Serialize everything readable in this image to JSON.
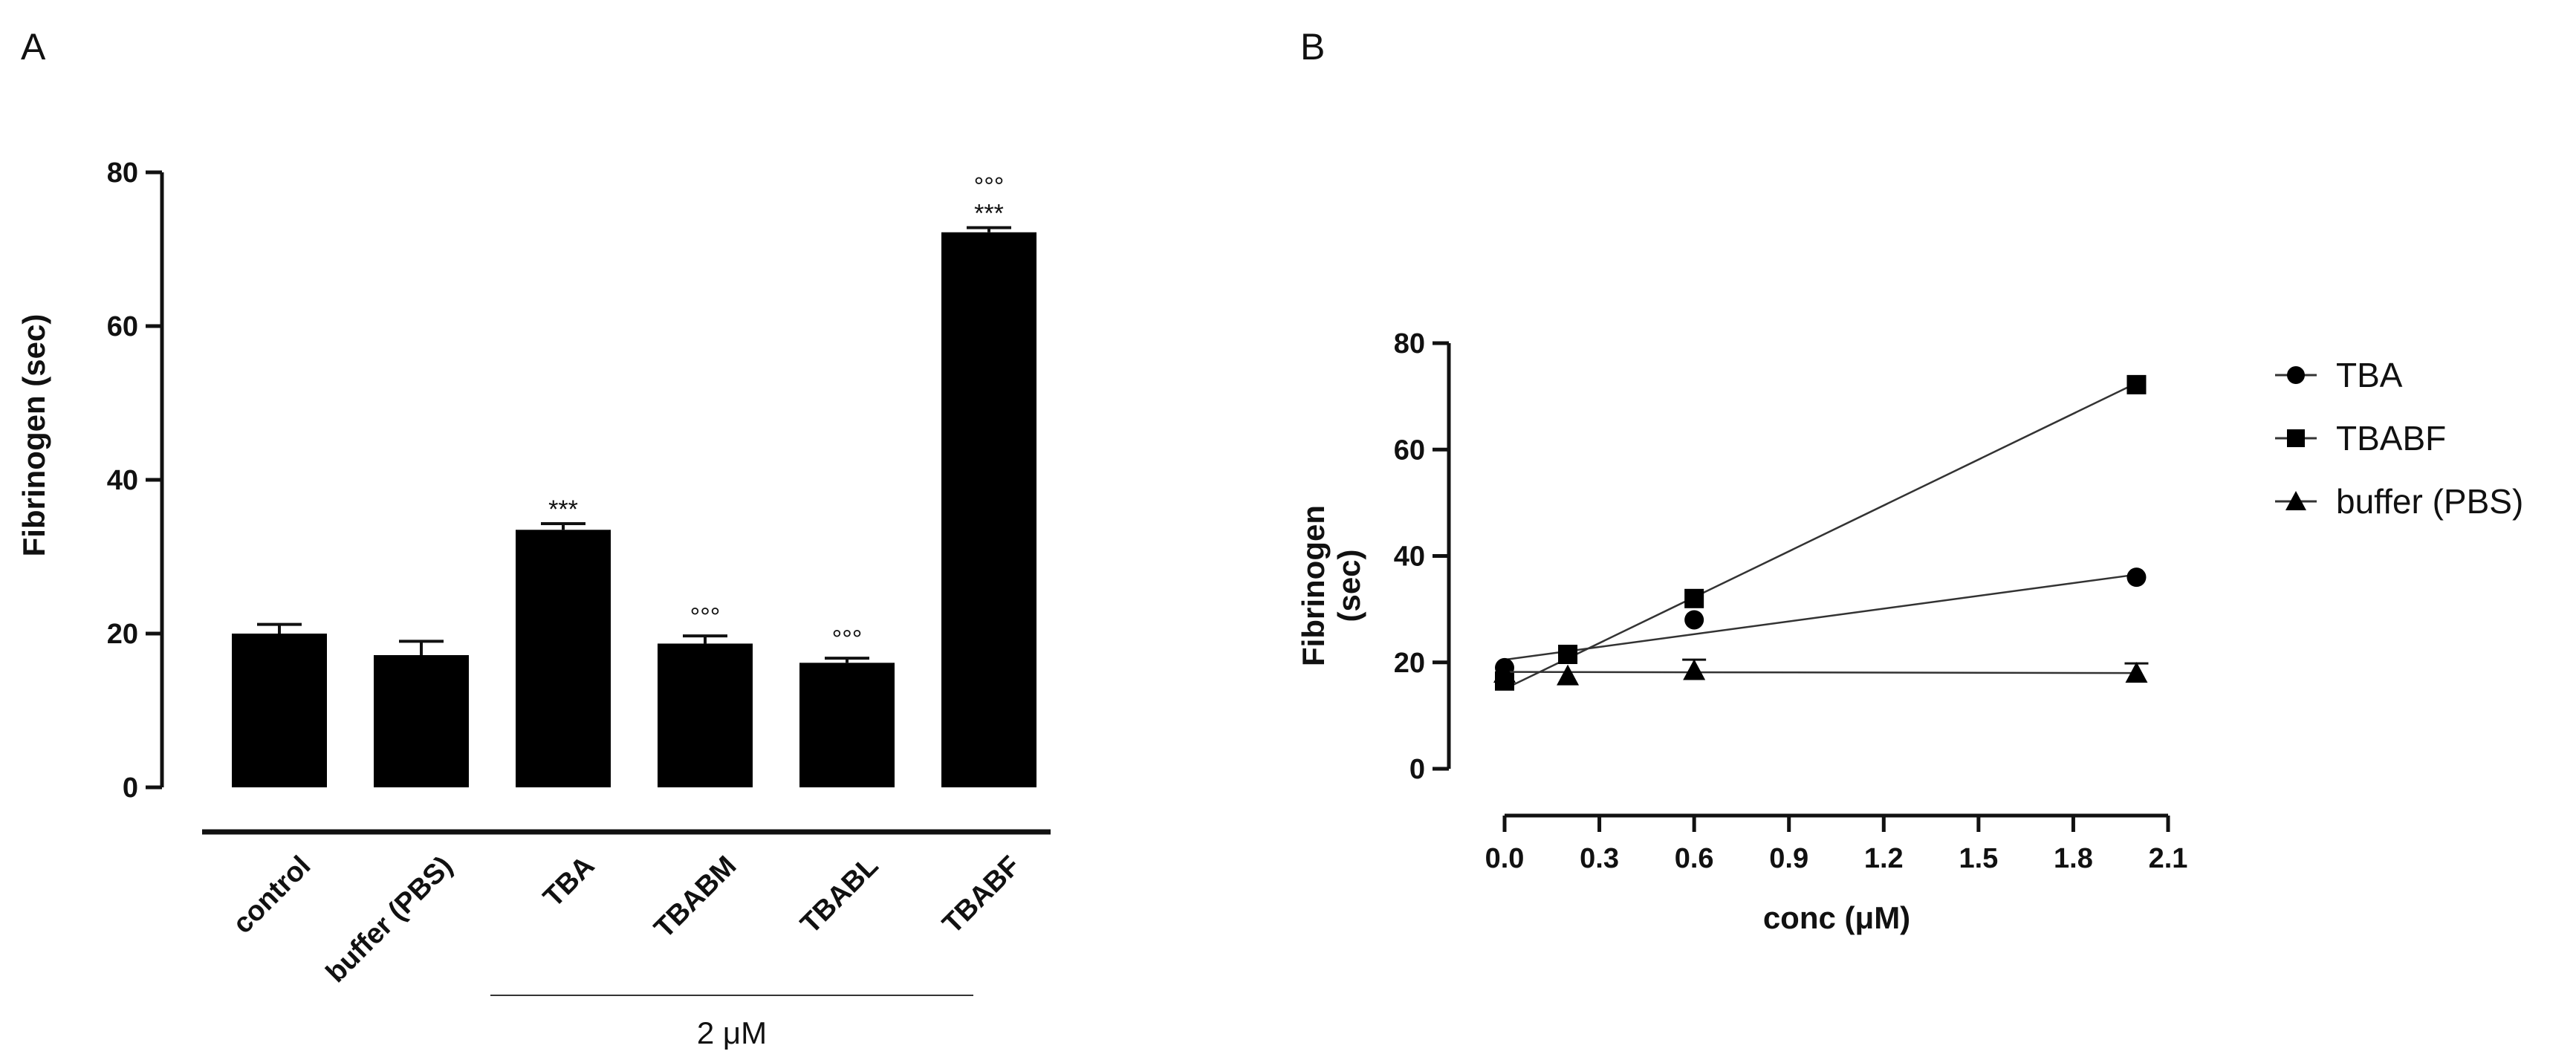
{
  "chart_data": [
    {
      "panel_label": "A",
      "type": "bar",
      "title": "",
      "xlabel": "",
      "ylabel": "Fibrinogen (sec)",
      "ylim": [
        0,
        80
      ],
      "yticks": [
        "0",
        "20",
        "40",
        "60",
        "80"
      ],
      "categories": [
        "control",
        "buffer (PBS)",
        "TBA",
        "TBABM",
        "TBABL",
        "TBABF"
      ],
      "values": [
        20.0,
        17.2,
        33.5,
        18.7,
        16.2,
        72.2
      ],
      "errors": [
        1.2,
        1.8,
        0.8,
        1.0,
        0.6,
        0.6
      ],
      "significance": [
        "",
        "",
        "***",
        "",
        "",
        "***"
      ],
      "significance_alt": [
        "",
        "",
        "",
        "°°°",
        "°°°",
        "°°°"
      ],
      "group_label": "2 μM",
      "bar_color": "#000000"
    },
    {
      "panel_label": "B",
      "type": "line",
      "title": "",
      "xlabel": "conc (μM)",
      "ylabel": "Fibrinogen (sec)",
      "ylabel_lines": [
        "Fibrinogen",
        "(sec)"
      ],
      "xlim": [
        0,
        2.1
      ],
      "ylim": [
        0,
        80
      ],
      "xticks": [
        "0.0",
        "0.3",
        "0.6",
        "0.9",
        "1.2",
        "1.5",
        "1.8",
        "2.1"
      ],
      "yticks": [
        "0",
        "20",
        "40",
        "60",
        "80"
      ],
      "series": [
        {
          "name": "TBA",
          "marker": "circle",
          "x": [
            0,
            0.2,
            0.6,
            2.0
          ],
          "y": [
            19.0,
            21.5,
            28.0,
            36.0
          ],
          "fit": [
            [
              0,
              20.5
            ],
            [
              2.0,
              36.5
            ]
          ]
        },
        {
          "name": "TBABF",
          "marker": "square",
          "x": [
            0,
            0.2,
            0.6,
            2.0
          ],
          "y": [
            16.5,
            21.5,
            32.0,
            72.2
          ],
          "fit": [
            [
              0,
              15.0
            ],
            [
              2.0,
              72.5
            ]
          ]
        },
        {
          "name": "buffer (PBS)",
          "marker": "triangle",
          "x": [
            0,
            0.2,
            0.6,
            2.0
          ],
          "y": [
            18.0,
            17.5,
            18.5,
            18.0
          ],
          "errors": [
            0,
            0,
            2.0,
            1.8
          ],
          "fit": [
            [
              0,
              18.2
            ],
            [
              2.0,
              18.0
            ]
          ]
        }
      ],
      "legend_position": "right"
    }
  ]
}
